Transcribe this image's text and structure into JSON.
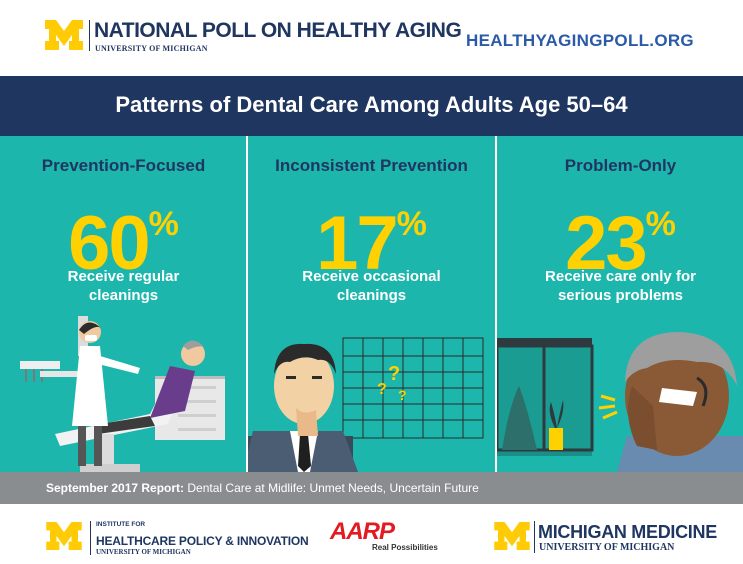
{
  "header": {
    "poll_title": "NATIONAL POLL ON HEALTHY AGING",
    "poll_subtitle": "UNIVERSITY OF MICHIGAN",
    "site_url": "HEALTHYAGINGPOLL.ORG"
  },
  "banner": {
    "title": "Patterns of Dental Care Among Adults Age 50–64"
  },
  "panels": [
    {
      "heading": "Prevention-Focused",
      "value": "60",
      "unit": "%",
      "caption_line1": "Receive regular",
      "caption_line2": "cleanings"
    },
    {
      "heading": "Inconsistent Prevention",
      "value": "17",
      "unit": "%",
      "caption_line1": "Receive occasional",
      "caption_line2": "cleanings"
    },
    {
      "heading": "Problem-Only",
      "value": "23",
      "unit": "%",
      "caption_line1": "Receive care only for",
      "caption_line2": "serious problems"
    }
  ],
  "report": {
    "label": "September 2017 Report:",
    "title": "Dental Care at Midlife: Unmet Needs, Uncertain Future"
  },
  "footer": {
    "ihpi_top_line1": "INSTITUTE FOR",
    "ihpi_main": "HEALTHCARE POLICY & INNOVATION",
    "ihpi_sub": "UNIVERSITY OF MICHIGAN",
    "aarp_logo": "AARP",
    "aarp_tagline": "Real Possibilities",
    "mm_main": "MICHIGAN MEDICINE",
    "mm_sub": "UNIVERSITY OF MICHIGAN"
  },
  "colors": {
    "navy": "#1f3661",
    "teal": "#1db6ac",
    "maize": "#ffd100",
    "gray_bar": "#8a8d8f",
    "url_blue": "#2a5aa8",
    "aarp_red": "#e21a22"
  },
  "icons": [
    "block-m-logo",
    "dentist-chair-illustration",
    "confused-man-calendar-illustration",
    "toothache-man-illustration"
  ]
}
